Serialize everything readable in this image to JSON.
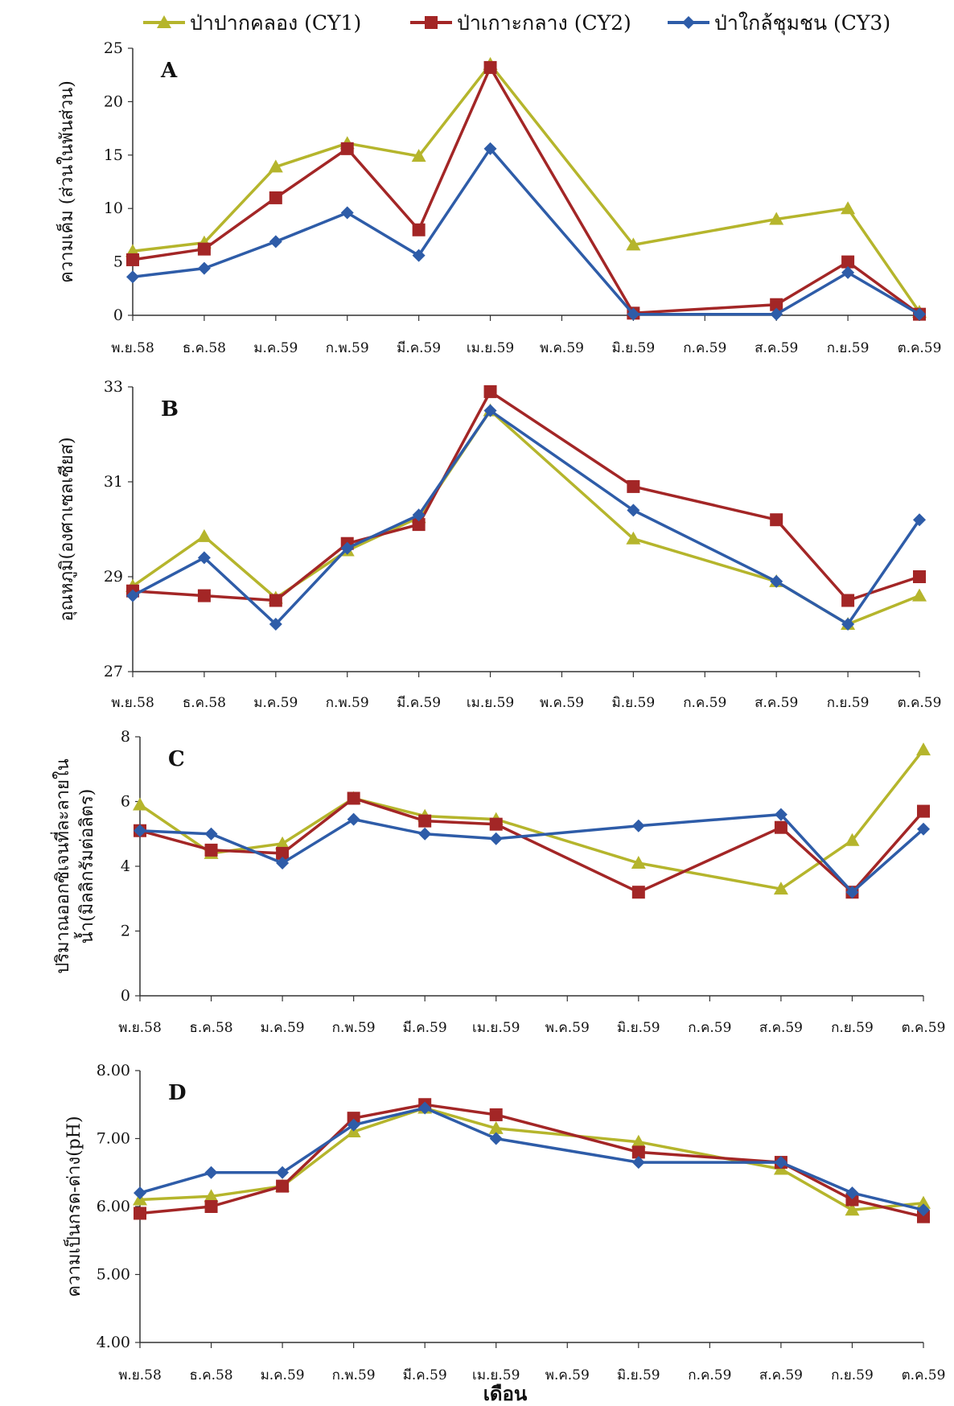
{
  "colors": {
    "CY1": "#B5B52C",
    "CY2": "#A32626",
    "CY3": "#2E5CA8",
    "axis": "#333333"
  },
  "legend": [
    {
      "id": "CY1",
      "label": "ป่าปากคลอง (CY1)",
      "marker": "triangle"
    },
    {
      "id": "CY2",
      "label": "ป่าเกาะกลาง (CY2)",
      "marker": "square"
    },
    {
      "id": "CY3",
      "label": "ป่าใกล้ชุมชน (CY3)",
      "marker": "diamond"
    }
  ],
  "xlabel": "เดือน",
  "chart_data": [
    {
      "type": "line",
      "panel": "A",
      "ylabel": "ความเค็ม (ส่วนในพันส่วน)",
      "ylim": [
        0,
        25
      ],
      "yticks": [
        "0",
        "5",
        "10",
        "15",
        "20",
        "25"
      ],
      "categories": [
        "พ.ย.58",
        "ธ.ค.58",
        "ม.ค.59",
        "ก.พ.59",
        "มี.ค.59",
        "เม.ย.59",
        "พ.ค.59",
        "มิ.ย.59",
        "ก.ค.59",
        "ส.ค.59",
        "ก.ย.59",
        "ต.ค.59"
      ],
      "series": [
        {
          "name": "ป่าปากคลอง (CY1)",
          "id": "CY1",
          "values": [
            6.0,
            6.8,
            13.9,
            16.1,
            14.9,
            23.5,
            null,
            6.6,
            null,
            9.0,
            10.0,
            0.3
          ]
        },
        {
          "name": "ป่าเกาะกลาง (CY2)",
          "id": "CY2",
          "values": [
            5.2,
            6.2,
            11.0,
            15.6,
            8.0,
            23.2,
            null,
            0.2,
            null,
            1.0,
            5.0,
            0.1
          ]
        },
        {
          "name": "ป่าใกล้ชุมชน (CY3)",
          "id": "CY3",
          "values": [
            3.6,
            4.4,
            6.9,
            9.6,
            5.6,
            15.6,
            null,
            0.1,
            null,
            0.1,
            4.0,
            0.1
          ]
        }
      ]
    },
    {
      "type": "line",
      "panel": "B",
      "ylabel": "อุณหภูมิ(องศาเซลเซียส)",
      "ylim": [
        27,
        33
      ],
      "yticks": [
        "27",
        "29",
        "31",
        "33"
      ],
      "categories": [
        "พ.ย.58",
        "ธ.ค.58",
        "ม.ค.59",
        "ก.พ.59",
        "มี.ค.59",
        "เม.ย.59",
        "พ.ค.59",
        "มิ.ย.59",
        "ก.ค.59",
        "ส.ค.59",
        "ก.ย.59",
        "ต.ค.59"
      ],
      "series": [
        {
          "name": "ป่าปากคลอง (CY1)",
          "id": "CY1",
          "values": [
            28.8,
            29.85,
            28.55,
            29.55,
            30.25,
            32.5,
            null,
            29.8,
            null,
            28.9,
            28.0,
            28.6
          ]
        },
        {
          "name": "ป่าเกาะกลาง (CY2)",
          "id": "CY2",
          "values": [
            28.7,
            28.6,
            28.5,
            29.7,
            30.1,
            32.9,
            null,
            30.9,
            null,
            30.2,
            28.5,
            29.0
          ]
        },
        {
          "name": "ป่าใกล้ชุมชน (CY3)",
          "id": "CY3",
          "values": [
            28.6,
            29.4,
            28.0,
            29.6,
            30.3,
            32.5,
            null,
            30.4,
            null,
            28.9,
            28.0,
            30.2
          ]
        }
      ]
    },
    {
      "type": "line",
      "panel": "C",
      "ylabel": "ปริมาณออกซิเจนที่ละลายในน้ำ(มิลลิกรัมต่อลิตร)",
      "ylabel_lines": [
        "ปริมาณออกซิเจนที่ละลายใน",
        "น้ำ(มิลลิกรัมต่อลิตร)"
      ],
      "ylim": [
        0,
        8
      ],
      "yticks": [
        "0",
        "2",
        "4",
        "6",
        "8"
      ],
      "categories": [
        "พ.ย.58",
        "ธ.ค.58",
        "ม.ค.59",
        "ก.พ.59",
        "มี.ค.59",
        "เม.ย.59",
        "พ.ค.59",
        "มิ.ย.59",
        "ก.ค.59",
        "ส.ค.59",
        "ก.ย.59",
        "ต.ค.59"
      ],
      "series": [
        {
          "name": "ป่าปากคลอง (CY1)",
          "id": "CY1",
          "values": [
            5.9,
            4.4,
            4.7,
            6.1,
            5.55,
            5.45,
            null,
            4.1,
            null,
            3.3,
            4.8,
            7.6
          ]
        },
        {
          "name": "ป่าเกาะกลาง (CY2)",
          "id": "CY2",
          "values": [
            5.1,
            4.5,
            4.4,
            6.1,
            5.4,
            5.3,
            null,
            3.2,
            null,
            5.2,
            3.2,
            5.7
          ]
        },
        {
          "name": "ป่าใกล้ชุมชน (CY3)",
          "id": "CY3",
          "values": [
            5.1,
            5.0,
            4.1,
            5.45,
            5.0,
            4.85,
            null,
            5.25,
            null,
            5.6,
            3.2,
            5.15
          ]
        }
      ]
    },
    {
      "type": "line",
      "panel": "D",
      "ylabel": "ความเป็นกรด-ด่าง(pH)",
      "ylim": [
        4,
        8
      ],
      "yticks": [
        "4.00",
        "5.00",
        "6.00",
        "7.00",
        "8.00"
      ],
      "categories": [
        "พ.ย.58",
        "ธ.ค.58",
        "ม.ค.59",
        "ก.พ.59",
        "มี.ค.59",
        "เม.ย.59",
        "พ.ค.59",
        "มิ.ย.59",
        "ก.ค.59",
        "ส.ค.59",
        "ก.ย.59",
        "ต.ค.59"
      ],
      "series": [
        {
          "name": "ป่าปากคลอง (CY1)",
          "id": "CY1",
          "values": [
            6.1,
            6.15,
            6.3,
            7.1,
            7.45,
            7.15,
            null,
            6.95,
            null,
            6.55,
            5.95,
            6.05
          ]
        },
        {
          "name": "ป่าเกาะกลาง (CY2)",
          "id": "CY2",
          "values": [
            5.9,
            6.0,
            6.3,
            7.3,
            7.5,
            7.35,
            null,
            6.8,
            null,
            6.65,
            6.1,
            5.85
          ]
        },
        {
          "name": "ป่าใกล้ชุมชน (CY3)",
          "id": "CY3",
          "values": [
            6.2,
            6.5,
            6.5,
            7.2,
            7.45,
            7.0,
            null,
            6.65,
            null,
            6.65,
            6.2,
            5.95
          ]
        }
      ]
    }
  ]
}
